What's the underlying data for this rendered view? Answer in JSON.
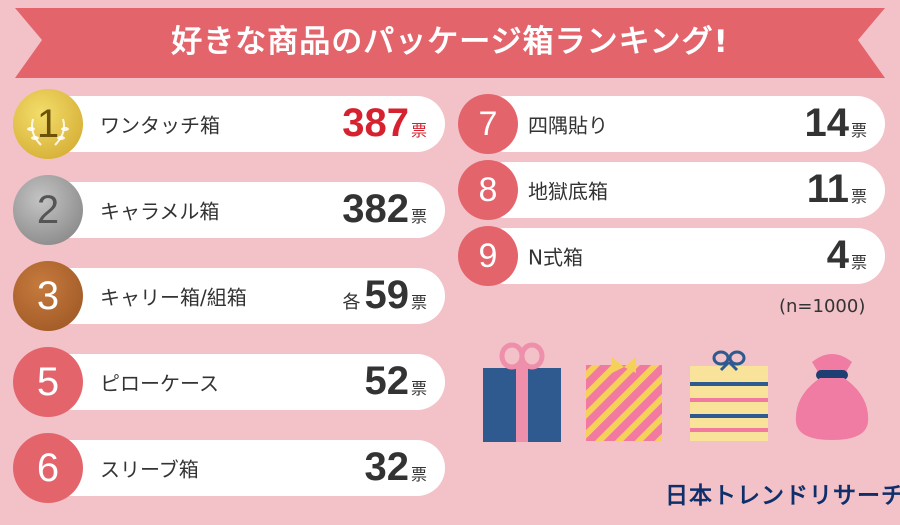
{
  "chart_data": {
    "type": "ranking",
    "title": "好きな商品のパッケージ箱ランキング!",
    "unit": "票",
    "note": "(n=1000)",
    "items": [
      {
        "rank": "1",
        "name": "ワンタッチ箱",
        "value": 387,
        "prefix": ""
      },
      {
        "rank": "2",
        "name": "キャラメル箱",
        "value": 382,
        "prefix": ""
      },
      {
        "rank": "3",
        "name": "キャリー箱/組箱",
        "value": 59,
        "prefix": "各"
      },
      {
        "rank": "5",
        "name": "ピローケース",
        "value": 52,
        "prefix": ""
      },
      {
        "rank": "6",
        "name": "スリーブ箱",
        "value": 32,
        "prefix": ""
      },
      {
        "rank": "7",
        "name": "四隅貼り",
        "value": 14,
        "prefix": ""
      },
      {
        "rank": "8",
        "name": "地獄底箱",
        "value": 11,
        "prefix": ""
      },
      {
        "rank": "9",
        "name": "N式箱",
        "value": 4,
        "prefix": ""
      }
    ]
  },
  "brand": "日本トレンドリサーチ",
  "colors": {
    "background": "#f3c2c8",
    "banner": "#e4646c",
    "badge": "#e4646c",
    "gold": "#d8b535",
    "silver": "#8f8f8f",
    "bronze": "#b0652c",
    "highlight": "#d6222f"
  }
}
